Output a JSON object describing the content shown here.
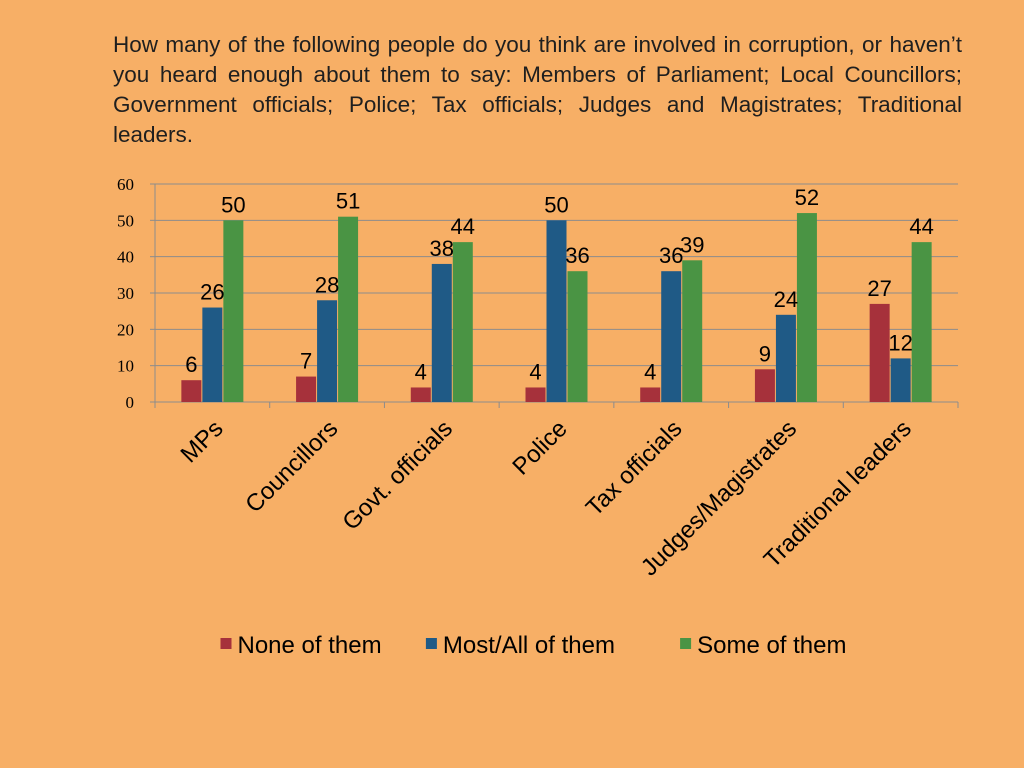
{
  "question": "How many of the following people do you think are involved in corruption, or haven’t you heard enough about them to say: Members of Parliament; Local Councillors; Government officials; Police; Tax officials; Judges and Magistrates; Traditional leaders.",
  "chart_data": {
    "type": "bar",
    "categories": [
      "MPs",
      "Councillors",
      "Govt. officials",
      "Police",
      "Tax officials",
      "Judges/Magistrates",
      "Traditional leaders"
    ],
    "series": [
      {
        "name": "None of them",
        "color": "#A6313B",
        "values": [
          6,
          7,
          4,
          4,
          4,
          9,
          27
        ]
      },
      {
        "name": "Most/All of them",
        "color": "#1F5A86",
        "values": [
          26,
          28,
          38,
          50,
          36,
          24,
          12
        ]
      },
      {
        "name": "Some of them",
        "color": "#4A9444",
        "values": [
          50,
          51,
          44,
          36,
          39,
          52,
          44
        ]
      }
    ],
    "yticks": [
      "0",
      "10",
      "20",
      "30",
      "40",
      "50",
      "60"
    ],
    "ylim": [
      0,
      60
    ],
    "grid": true,
    "legend_position": "bottom"
  }
}
